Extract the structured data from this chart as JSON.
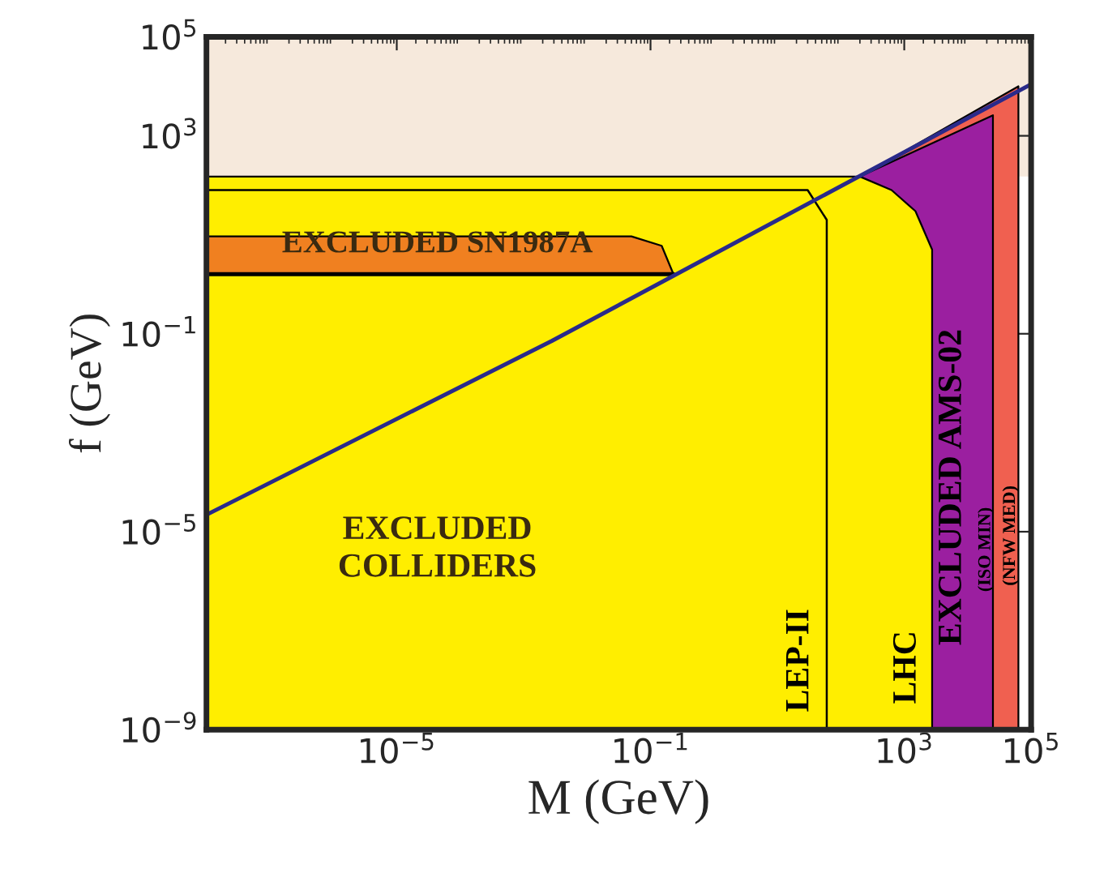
{
  "chart_data": {
    "type": "area",
    "xlabel": "M (GeV)",
    "ylabel": "f (GeV)",
    "log": "xy",
    "grid": false,
    "xlim": [
      1e-08,
      100000
    ],
    "ylim": [
      1e-09,
      100000
    ],
    "xticks": [
      {
        "value": 1e-05,
        "label": "10$^{−5}$"
      },
      {
        "value": 0.1,
        "label": "10$^{−1}$"
      },
      {
        "value": 1000,
        "label": "10$^{3}$"
      },
      {
        "value": 100000,
        "label": "10$^{5}$"
      }
    ],
    "yticks": [
      {
        "value": 1e-09,
        "label": "10$^{−9}$"
      },
      {
        "value": 1e-05,
        "label": "10$^{−5}$"
      },
      {
        "value": 0.1,
        "label": "10$^{−1}$"
      },
      {
        "value": 1000,
        "label": "10$^{3}$"
      },
      {
        "value": 100000,
        "label": "10$^{5}$"
      }
    ],
    "bands": [
      {
        "axis": "y",
        "from": 150,
        "to": 100000,
        "color": "#f6e9dc"
      }
    ],
    "series": [
      {
        "color": "#f06050",
        "x": [
          200,
          63000,
          63000
        ],
        "values": [
          150,
          10000,
          1e-09
        ]
      },
      {
        "color": "#9b1fa0",
        "x": [
          200,
          25000,
          25000
        ],
        "values": [
          150,
          2600,
          1e-09
        ]
      },
      {
        "color": "#ffee00",
        "x": [
          1e-08,
          200,
          630,
          1500,
          2750,
          2750
        ],
        "values": [
          150,
          150,
          80,
          30,
          5,
          1e-09
        ]
      },
      {
        "type": "line",
        "color": "#000000",
        "x": [
          1e-08,
          30,
          60,
          60
        ],
        "values": [
          80,
          80,
          20,
          1e-09
        ]
      },
      {
        "color": "#f08020",
        "x": [
          1e-08,
          0.05,
          0.15,
          0.23
        ],
        "values": [
          9.3,
          9.3,
          6,
          1.6
        ]
      },
      {
        "type": "line",
        "color": "#000000",
        "x": [
          1e-08,
          0.23
        ],
        "values": [
          1.6,
          1.6
        ]
      },
      {
        "type": "line",
        "color": "#2a2a8a",
        "x": [
          1e-08,
          0.0028,
          100000
        ],
        "values": [
          2.2e-05,
          0.072,
          11000
        ]
      }
    ],
    "annotations": [
      "EXCLUDED\nCOLLIDERS",
      "EXCLUDED SN1987A",
      "LEP-II",
      "LHC",
      "EXCLUDED AMS-02",
      "(ISO MIN)",
      "(NFW MED)"
    ]
  }
}
